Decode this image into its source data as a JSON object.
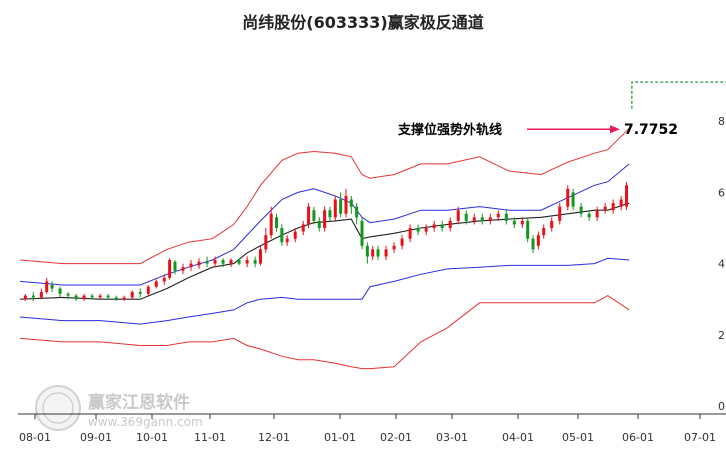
{
  "chart_data": {
    "type": "candlestick",
    "title": "尚纬股份(603333)赢家极反通道",
    "ylim": [
      0,
      9
    ],
    "yticks": [
      0,
      2,
      4,
      6,
      8
    ],
    "ytick_labels": [
      "0",
      "2",
      "4",
      "6",
      "8"
    ],
    "xticks": [
      "08-01",
      "09-01",
      "10-01",
      "11-01",
      "12-01",
      "01-01",
      "02-01",
      "03-01",
      "04-01",
      "05-01",
      "06-01",
      "07-01"
    ],
    "grid": false,
    "colors": {
      "up": "#e8111a",
      "down": "#139620",
      "upper_band": "#e53333",
      "lower_band": "#e53333",
      "mid_upper": "#2b2be0",
      "mid_lower": "#2b2be0",
      "ma": "#222222",
      "arrow": "#e6195f",
      "step": "#1a8a2a"
    },
    "series": [
      {
        "role": "upper_band",
        "points": [
          [
            0,
            4.1
          ],
          [
            16,
            4.0
          ],
          [
            30,
            4.0
          ],
          [
            45,
            4.0
          ],
          [
            55,
            4.4
          ],
          [
            63,
            4.6
          ],
          [
            72,
            4.7
          ],
          [
            80,
            5.1
          ],
          [
            85,
            5.6
          ],
          [
            90,
            6.2
          ],
          [
            98,
            6.9
          ],
          [
            104,
            7.1
          ],
          [
            110,
            7.15
          ],
          [
            118,
            7.1
          ],
          [
            124,
            7.0
          ],
          [
            128,
            6.5
          ],
          [
            131,
            6.4
          ],
          [
            140,
            6.5
          ],
          [
            150,
            6.8
          ],
          [
            160,
            6.8
          ],
          [
            172,
            7.0
          ],
          [
            183,
            6.6
          ],
          [
            195,
            6.5
          ],
          [
            205,
            6.85
          ],
          [
            215,
            7.1
          ],
          [
            220,
            7.2
          ],
          [
            228,
            7.8
          ]
        ]
      },
      {
        "role": "mid_upper",
        "points": [
          [
            0,
            3.5
          ],
          [
            16,
            3.4
          ],
          [
            30,
            3.4
          ],
          [
            45,
            3.4
          ],
          [
            55,
            3.7
          ],
          [
            63,
            3.9
          ],
          [
            72,
            4.1
          ],
          [
            80,
            4.4
          ],
          [
            85,
            4.8
          ],
          [
            90,
            5.2
          ],
          [
            98,
            5.8
          ],
          [
            104,
            6.0
          ],
          [
            110,
            6.1
          ],
          [
            118,
            5.9
          ],
          [
            124,
            5.7
          ],
          [
            128,
            5.3
          ],
          [
            131,
            5.15
          ],
          [
            140,
            5.25
          ],
          [
            150,
            5.5
          ],
          [
            160,
            5.5
          ],
          [
            172,
            5.6
          ],
          [
            183,
            5.5
          ],
          [
            195,
            5.5
          ],
          [
            205,
            5.85
          ],
          [
            215,
            6.2
          ],
          [
            220,
            6.3
          ],
          [
            228,
            6.8
          ]
        ]
      },
      {
        "role": "ma",
        "points": [
          [
            0,
            3.0
          ],
          [
            16,
            3.05
          ],
          [
            30,
            3.0
          ],
          [
            45,
            3.0
          ],
          [
            55,
            3.3
          ],
          [
            63,
            3.6
          ],
          [
            72,
            3.9
          ],
          [
            80,
            4.0
          ],
          [
            85,
            4.3
          ],
          [
            90,
            4.5
          ],
          [
            98,
            4.8
          ],
          [
            104,
            5.0
          ],
          [
            110,
            5.15
          ],
          [
            118,
            5.2
          ],
          [
            124,
            5.25
          ],
          [
            128,
            4.7
          ],
          [
            131,
            4.75
          ],
          [
            140,
            4.85
          ],
          [
            150,
            5.0
          ],
          [
            160,
            5.1
          ],
          [
            172,
            5.2
          ],
          [
            183,
            5.25
          ],
          [
            195,
            5.3
          ],
          [
            205,
            5.4
          ],
          [
            215,
            5.5
          ],
          [
            220,
            5.5
          ],
          [
            228,
            5.7
          ]
        ]
      },
      {
        "role": "mid_lower",
        "points": [
          [
            0,
            2.5
          ],
          [
            16,
            2.4
          ],
          [
            30,
            2.4
          ],
          [
            45,
            2.3
          ],
          [
            55,
            2.4
          ],
          [
            63,
            2.5
          ],
          [
            72,
            2.6
          ],
          [
            80,
            2.7
          ],
          [
            85,
            2.9
          ],
          [
            90,
            3.0
          ],
          [
            98,
            3.05
          ],
          [
            104,
            3.0
          ],
          [
            110,
            3.0
          ],
          [
            118,
            3.0
          ],
          [
            124,
            3.0
          ],
          [
            128,
            3.0
          ],
          [
            131,
            3.35
          ],
          [
            140,
            3.5
          ],
          [
            150,
            3.7
          ],
          [
            160,
            3.85
          ],
          [
            172,
            3.9
          ],
          [
            183,
            3.95
          ],
          [
            195,
            3.95
          ],
          [
            205,
            3.95
          ],
          [
            215,
            4.0
          ],
          [
            220,
            4.15
          ],
          [
            228,
            4.1
          ]
        ]
      },
      {
        "role": "lower_band",
        "points": [
          [
            0,
            1.9
          ],
          [
            16,
            1.8
          ],
          [
            30,
            1.8
          ],
          [
            45,
            1.7
          ],
          [
            55,
            1.7
          ],
          [
            63,
            1.8
          ],
          [
            72,
            1.8
          ],
          [
            80,
            1.9
          ],
          [
            85,
            1.7
          ],
          [
            90,
            1.6
          ],
          [
            98,
            1.4
          ],
          [
            104,
            1.3
          ],
          [
            110,
            1.3
          ],
          [
            118,
            1.2
          ],
          [
            124,
            1.1
          ],
          [
            128,
            1.05
          ],
          [
            131,
            1.05
          ],
          [
            140,
            1.1
          ],
          [
            150,
            1.8
          ],
          [
            160,
            2.2
          ],
          [
            172,
            2.9
          ],
          [
            183,
            2.9
          ],
          [
            195,
            2.9
          ],
          [
            205,
            2.9
          ],
          [
            215,
            2.9
          ],
          [
            220,
            3.1
          ],
          [
            228,
            2.7
          ]
        ]
      }
    ],
    "candles": [
      [
        2,
        3.0,
        3.1,
        2.95,
        3.15
      ],
      [
        5,
        3.1,
        3.05,
        2.95,
        3.2
      ],
      [
        8,
        3.05,
        3.2,
        3.0,
        3.3
      ],
      [
        10,
        3.2,
        3.5,
        3.15,
        3.6
      ],
      [
        12,
        3.4,
        3.3,
        3.2,
        3.5
      ],
      [
        15,
        3.3,
        3.15,
        3.05,
        3.35
      ],
      [
        18,
        3.15,
        3.1,
        3.0,
        3.2
      ],
      [
        21,
        3.1,
        3.0,
        2.95,
        3.15
      ],
      [
        24,
        3.0,
        3.1,
        2.95,
        3.15
      ],
      [
        27,
        3.1,
        3.05,
        3.0,
        3.15
      ],
      [
        30,
        3.05,
        3.1,
        3.0,
        3.15
      ],
      [
        33,
        3.1,
        3.05,
        3.0,
        3.15
      ],
      [
        36,
        3.05,
        3.0,
        2.95,
        3.1
      ],
      [
        39,
        3.0,
        3.05,
        2.95,
        3.1
      ],
      [
        42,
        3.05,
        3.2,
        3.0,
        3.25
      ],
      [
        45,
        3.2,
        3.15,
        3.05,
        3.3
      ],
      [
        48,
        3.15,
        3.35,
        3.1,
        3.4
      ],
      [
        51,
        3.35,
        3.5,
        3.3,
        3.55
      ],
      [
        54,
        3.5,
        3.6,
        3.4,
        3.7
      ],
      [
        56,
        3.6,
        4.1,
        3.55,
        4.15
      ],
      [
        58,
        4.05,
        3.8,
        3.7,
        4.1
      ],
      [
        61,
        3.8,
        3.9,
        3.7,
        4.0
      ],
      [
        64,
        3.9,
        4.0,
        3.8,
        4.1
      ],
      [
        67,
        3.95,
        4.05,
        3.85,
        4.15
      ],
      [
        70,
        4.05,
        4.0,
        3.9,
        4.2
      ],
      [
        73,
        4.0,
        4.1,
        3.9,
        4.2
      ],
      [
        76,
        4.1,
        4.0,
        3.9,
        4.15
      ],
      [
        79,
        4.0,
        4.1,
        3.9,
        4.15
      ],
      [
        82,
        4.1,
        4.0,
        3.95,
        4.15
      ],
      [
        85,
        4.0,
        4.1,
        3.9,
        4.2
      ],
      [
        88,
        4.1,
        4.0,
        3.9,
        4.2
      ],
      [
        90,
        4.0,
        4.4,
        3.95,
        4.5
      ],
      [
        92,
        4.4,
        4.8,
        4.3,
        5.0
      ],
      [
        94,
        4.8,
        5.4,
        4.7,
        5.6
      ],
      [
        96,
        5.3,
        5.0,
        4.9,
        5.4
      ],
      [
        98,
        5.0,
        4.6,
        4.5,
        5.1
      ],
      [
        100,
        4.6,
        4.7,
        4.5,
        4.8
      ],
      [
        103,
        4.7,
        4.9,
        4.6,
        5.0
      ],
      [
        106,
        4.9,
        5.1,
        4.8,
        5.2
      ],
      [
        108,
        5.1,
        5.6,
        5.0,
        5.7
      ],
      [
        110,
        5.5,
        5.2,
        5.1,
        5.6
      ],
      [
        112,
        5.2,
        5.0,
        4.9,
        5.3
      ],
      [
        114,
        5.0,
        5.5,
        4.9,
        5.6
      ],
      [
        116,
        5.5,
        5.3,
        5.2,
        5.6
      ],
      [
        118,
        5.3,
        5.8,
        5.2,
        5.9
      ],
      [
        120,
        5.8,
        5.4,
        5.3,
        6.0
      ],
      [
        122,
        5.4,
        5.9,
        5.3,
        6.1
      ],
      [
        124,
        5.8,
        5.6,
        5.4,
        5.9
      ],
      [
        126,
        5.6,
        5.3,
        5.1,
        5.7
      ],
      [
        128,
        5.2,
        4.5,
        4.4,
        5.3
      ],
      [
        130,
        4.5,
        4.2,
        4.0,
        4.6
      ],
      [
        132,
        4.2,
        4.4,
        4.1,
        4.5
      ],
      [
        134,
        4.4,
        4.2,
        4.1,
        4.5
      ],
      [
        137,
        4.2,
        4.4,
        4.1,
        4.5
      ],
      [
        140,
        4.4,
        4.5,
        4.3,
        4.6
      ],
      [
        143,
        4.5,
        4.7,
        4.4,
        4.8
      ],
      [
        146,
        4.7,
        5.0,
        4.6,
        5.1
      ],
      [
        149,
        5.0,
        4.9,
        4.8,
        5.1
      ],
      [
        152,
        4.9,
        5.0,
        4.8,
        5.1
      ],
      [
        155,
        5.0,
        5.1,
        4.9,
        5.2
      ],
      [
        158,
        5.1,
        5.0,
        4.9,
        5.2
      ],
      [
        161,
        5.0,
        5.2,
        4.9,
        5.3
      ],
      [
        164,
        5.2,
        5.5,
        5.1,
        5.6
      ],
      [
        167,
        5.4,
        5.2,
        5.1,
        5.5
      ],
      [
        170,
        5.2,
        5.3,
        5.1,
        5.4
      ],
      [
        173,
        5.3,
        5.2,
        5.1,
        5.4
      ],
      [
        176,
        5.2,
        5.3,
        5.1,
        5.4
      ],
      [
        179,
        5.3,
        5.4,
        5.2,
        5.5
      ],
      [
        182,
        5.4,
        5.2,
        5.1,
        5.5
      ],
      [
        185,
        5.2,
        5.1,
        5.0,
        5.3
      ],
      [
        188,
        5.1,
        5.2,
        5.0,
        5.3
      ],
      [
        190,
        5.2,
        4.7,
        4.6,
        5.3
      ],
      [
        192,
        4.7,
        4.4,
        4.3,
        4.8
      ],
      [
        194,
        4.5,
        4.8,
        4.4,
        4.9
      ],
      [
        196,
        4.8,
        5.0,
        4.7,
        5.1
      ],
      [
        199,
        5.0,
        5.2,
        4.9,
        5.3
      ],
      [
        202,
        5.2,
        5.6,
        5.1,
        5.7
      ],
      [
        205,
        5.6,
        6.1,
        5.5,
        6.2
      ],
      [
        207,
        6.0,
        5.6,
        5.5,
        6.1
      ],
      [
        210,
        5.6,
        5.4,
        5.3,
        5.7
      ],
      [
        213,
        5.4,
        5.3,
        5.2,
        5.5
      ],
      [
        216,
        5.3,
        5.5,
        5.2,
        5.6
      ],
      [
        219,
        5.5,
        5.6,
        5.4,
        5.7
      ],
      [
        222,
        5.5,
        5.7,
        5.4,
        5.8
      ],
      [
        225,
        5.6,
        5.8,
        5.5,
        5.9
      ],
      [
        227,
        5.6,
        6.2,
        5.5,
        6.3
      ]
    ],
    "annotation": {
      "label": "支撑位强势外轨线",
      "value": "7.7752",
      "y": 7.7752
    },
    "step_line": {
      "start_x": 229,
      "end_x": 240,
      "low_y": 8.35,
      "high_y": 9.1
    },
    "watermark": {
      "name": "赢家江恩软件",
      "url": "www.369gann.com"
    }
  }
}
